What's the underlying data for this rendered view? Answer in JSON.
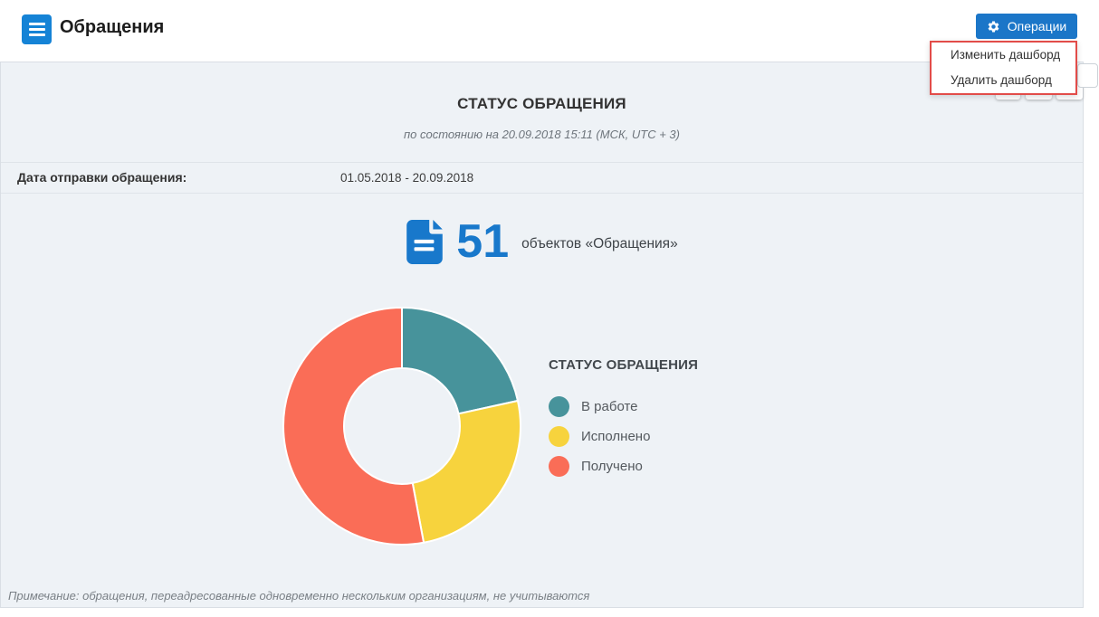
{
  "topbar": {
    "title": "Обращения",
    "operations_button": "Операции"
  },
  "operations_menu": {
    "items": [
      "Изменить дашборд",
      "Удалить дашборд"
    ]
  },
  "widget": {
    "title": "СТАТУС ОБРАЩЕНИЯ",
    "subtitle": "по состоянию на 20.09.2018 15:11 (МСК, UTC + 3)",
    "filter_label": "Дата отправки обращения:",
    "filter_value": "01.05.2018 - 20.09.2018",
    "total_value": "51",
    "total_label": "объектов «Обращения»",
    "note": "Примечание: обращения, переадресованные одновременно нескольким организациям, не учитываются"
  },
  "chart_data": {
    "type": "pie",
    "subtype": "donut",
    "title": "СТАТУС ОБРАЩЕНИЯ",
    "categories": [
      "В работе",
      "Исполнено",
      "Получено"
    ],
    "values": [
      11,
      13,
      27
    ],
    "total": 51,
    "colors": [
      "#47939b",
      "#f7d33d",
      "#fa6d57"
    ],
    "legend_position": "right",
    "start_angle_deg": 0,
    "direction": "clockwise",
    "inner_radius_ratio": 0.48
  },
  "colors": {
    "accent_blue": "#1878cb",
    "button_blue": "#1b76c8",
    "hamburger_blue": "#1583d6",
    "menu_border_red": "#e24c49",
    "panel_bg": "#eef2f6"
  }
}
